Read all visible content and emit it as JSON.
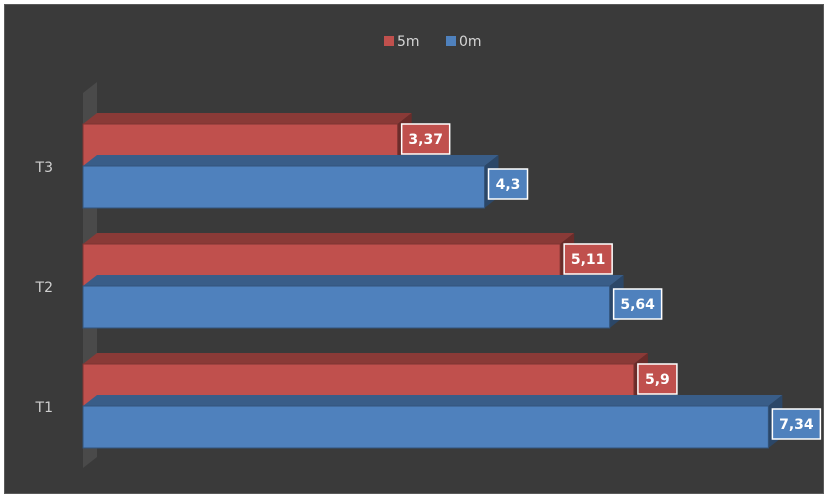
{
  "chart_data": {
    "type": "bar",
    "orientation": "horizontal",
    "three_d": true,
    "categories": [
      "T1",
      "T2",
      "T3"
    ],
    "series": [
      {
        "name": "5m",
        "values": [
          5.9,
          5.11,
          3.37
        ],
        "labels": [
          "5,9",
          "5,11",
          "3,37"
        ],
        "color": "#c0504d"
      },
      {
        "name": "0m",
        "values": [
          7.34,
          5.64,
          4.3
        ],
        "labels": [
          "7,34",
          "5,64",
          "4,3"
        ],
        "color": "#4f81bd"
      }
    ],
    "xlim": [
      0,
      8
    ],
    "legend_position": "top",
    "grid": false,
    "title": "",
    "xlabel": "",
    "ylabel": "",
    "background_color": "#3a3a3a"
  }
}
